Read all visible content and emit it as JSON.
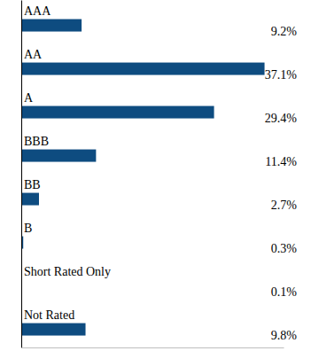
{
  "chart_data": {
    "type": "bar",
    "orientation": "horizontal",
    "categories": [
      "AAA",
      "AA",
      "A",
      "BBB",
      "BB",
      "B",
      "Short Rated Only",
      "Not Rated"
    ],
    "values": [
      9.2,
      37.1,
      29.4,
      11.4,
      2.7,
      0.3,
      0.1,
      9.8
    ],
    "value_labels": [
      "9.2%",
      "37.1%",
      "29.4%",
      "11.4%",
      "2.7%",
      "0.3%",
      "0.1%",
      "9.8%"
    ],
    "color": "#0e4c80",
    "xlim": [
      0,
      40
    ],
    "tick_labels": false,
    "data_labels": true,
    "grid": false
  }
}
